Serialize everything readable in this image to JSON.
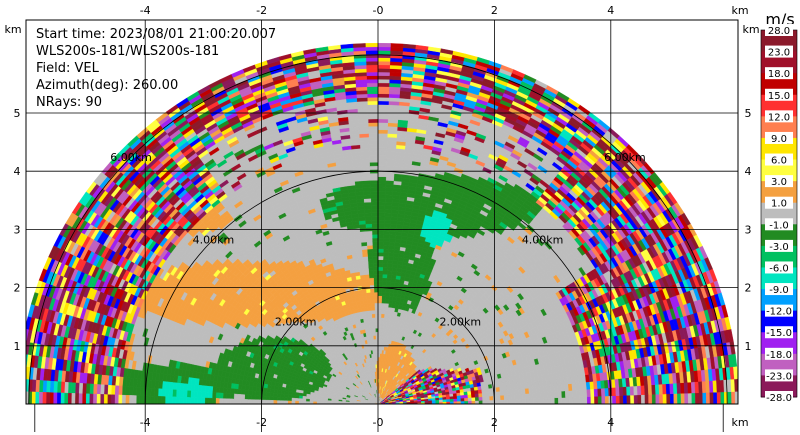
{
  "chart_data": {
    "type": "heatmap",
    "subtype": "radar-rhi-sector",
    "info": [
      "Start time: 2023/08/01 21:00:20.007",
      "WLS200s-181/WLS200s-181",
      "Field: VEL",
      "Azimuth(deg): 260.00",
      "NRays: 90"
    ],
    "axis_unit": "km",
    "xlim": [
      -6,
      6
    ],
    "ylim": [
      0,
      5.8
    ],
    "x_ticks": [
      "-4",
      "-2",
      "-0",
      "2",
      "4"
    ],
    "x_tick_values": [
      -4,
      -2,
      0,
      2,
      4
    ],
    "y_ticks": [
      "1",
      "2",
      "3",
      "4",
      "5"
    ],
    "y_tick_values": [
      1,
      2,
      3,
      4,
      5
    ],
    "grid": true,
    "max_range_km": 6.2,
    "range_rings": [
      {
        "radius_km": 2,
        "left_label": "2.00km",
        "right_label": "2.00km"
      },
      {
        "radius_km": 4,
        "left_label": "4.00km",
        "right_label": "4.00km"
      },
      {
        "radius_km": 6,
        "left_label": "6.00km",
        "right_label": "6.00km"
      }
    ],
    "colorbar": {
      "unit": "m/s",
      "labels": [
        "28.0",
        "23.0",
        "18.0",
        "15.0",
        "12.0",
        "9.0",
        "6.0",
        "3.0",
        "1.0",
        "-1.0",
        "-3.0",
        "-6.0",
        "-9.0",
        "-12.0",
        "-15.0",
        "-18.0",
        "-23.0",
        "-28.0"
      ],
      "bins": [
        {
          "lo": 23,
          "hi": 28,
          "color": "#8b1a2b"
        },
        {
          "lo": 18,
          "hi": 23,
          "color": "#a0102a"
        },
        {
          "lo": 15,
          "hi": 18,
          "color": "#c00000"
        },
        {
          "lo": 12,
          "hi": 15,
          "color": "#ff3030"
        },
        {
          "lo": 9,
          "hi": 12,
          "color": "#ff7f50"
        },
        {
          "lo": 6,
          "hi": 9,
          "color": "#ffe600"
        },
        {
          "lo": 3,
          "hi": 6,
          "color": "#ffff40"
        },
        {
          "lo": 1,
          "hi": 3,
          "color": "#f4a040"
        },
        {
          "lo": -1,
          "hi": 1,
          "color": "#bdbdbd"
        },
        {
          "lo": -3,
          "hi": -1,
          "color": "#228b22"
        },
        {
          "lo": -6,
          "hi": -3,
          "color": "#00c060"
        },
        {
          "lo": -9,
          "hi": -6,
          "color": "#00e5c0"
        },
        {
          "lo": -12,
          "hi": -9,
          "color": "#00a0ff"
        },
        {
          "lo": -15,
          "hi": -12,
          "color": "#0000ff"
        },
        {
          "lo": -18,
          "hi": -15,
          "color": "#a020f0"
        },
        {
          "lo": -23,
          "hi": -18,
          "color": "#c060c0"
        },
        {
          "lo": -28,
          "hi": -23,
          "color": "#8b1a5a"
        }
      ]
    },
    "regions": [
      {
        "name": "near-zero background",
        "value": 0,
        "color": "#bdbdbd",
        "range_km": [
          0,
          4.4
        ]
      },
      {
        "name": "positive velocity area left",
        "value": 2,
        "color": "#f4a040"
      },
      {
        "name": "negative velocity area center",
        "value": -2,
        "color": "#228b22"
      },
      {
        "name": "noisy far range",
        "value": "mixed",
        "range_km": [
          4.4,
          6.2
        ]
      }
    ]
  }
}
